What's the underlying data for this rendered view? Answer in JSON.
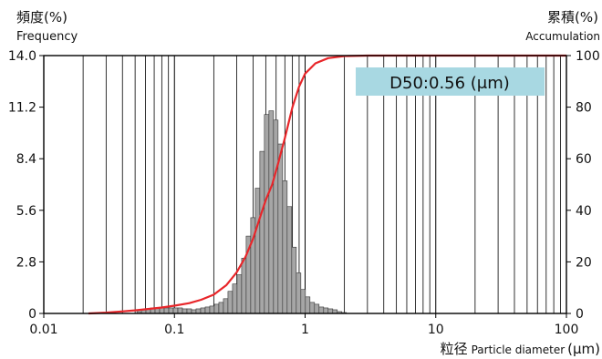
{
  "chart_data": {
    "type": "bar",
    "left_axis": {
      "label_jp": "頻度(%)",
      "label_en": "Frequency",
      "ticks": [
        "14.0",
        "11.2",
        "8.4",
        "5.6",
        "2.8",
        "0"
      ],
      "ylim": [
        0,
        14.0
      ]
    },
    "right_axis": {
      "label_jp": "累積(%)",
      "label_en": "Accumulation",
      "ticks": [
        "100",
        "80",
        "60",
        "40",
        "20",
        "0"
      ],
      "ylim": [
        0,
        100
      ]
    },
    "x_axis": {
      "label_jp": "粒径",
      "label_en": "Particle diameter",
      "unit": "(μm)",
      "scale": "log",
      "xlim": [
        0.01,
        100
      ],
      "ticks": [
        "0.01",
        "0.1",
        "1",
        "10",
        "100"
      ]
    },
    "annotation": "D50:0.56 (μm)",
    "colors": {
      "bars": "#a6a6a6",
      "bar_edge": "#333333",
      "cumulative": "#e8262a",
      "annotation_bg": "#a8d8e2",
      "grid": "#000000"
    },
    "histogram": {
      "name": "Frequency",
      "x": [
        0.0537,
        0.0582,
        0.063,
        0.0683,
        0.074,
        0.0802,
        0.0869,
        0.0942,
        0.102,
        0.1106,
        0.1198,
        0.1298,
        0.1407,
        0.1524,
        0.1652,
        0.179,
        0.1939,
        0.2101,
        0.2277,
        0.2467,
        0.2673,
        0.2897,
        0.3139,
        0.3401,
        0.3685,
        0.3993,
        0.4327,
        0.4688,
        0.508,
        0.5505,
        0.5965,
        0.6463,
        0.7003,
        0.7589,
        0.8223,
        0.891,
        0.9655,
        1.0462,
        1.1336,
        1.2283,
        1.331,
        1.4422,
        1.5627,
        1.6933,
        1.8348,
        1.9881
      ],
      "values": [
        0.1,
        0.2,
        0.25,
        0.3,
        0.3,
        0.3,
        0.3,
        0.3,
        0.3,
        0.3,
        0.25,
        0.25,
        0.2,
        0.25,
        0.3,
        0.35,
        0.4,
        0.5,
        0.6,
        0.8,
        1.2,
        1.6,
        2.1,
        3.0,
        4.2,
        5.2,
        6.8,
        8.8,
        10.8,
        11.0,
        10.5,
        9.2,
        7.2,
        5.8,
        3.6,
        2.2,
        1.3,
        0.9,
        0.6,
        0.5,
        0.35,
        0.3,
        0.25,
        0.2,
        0.1,
        0.05
      ]
    },
    "cumulative": {
      "name": "Accumulation",
      "x": [
        0.022,
        0.03,
        0.05,
        0.08,
        0.1,
        0.13,
        0.16,
        0.2,
        0.25,
        0.3,
        0.35,
        0.4,
        0.45,
        0.5,
        0.56,
        0.62,
        0.7,
        0.8,
        0.9,
        1.0,
        1.2,
        1.5,
        2.0,
        3.0,
        100
      ],
      "values": [
        0,
        0.3,
        1.2,
        2.3,
        3.0,
        4.0,
        5.3,
        7.3,
        11.0,
        16.0,
        22.0,
        29.0,
        37.0,
        44.0,
        50.0,
        58.0,
        68.0,
        80.0,
        88.0,
        93.0,
        97.0,
        99.0,
        99.8,
        100,
        100
      ]
    }
  }
}
